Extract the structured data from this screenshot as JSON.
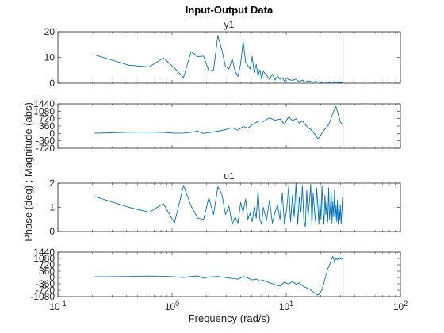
{
  "chart_data": {
    "type": "line",
    "title": "Input-Output Data",
    "xlabel": "Frequency  (rad/s)",
    "ylabel": "Phase (deg) ; Magnitude (abs)",
    "xscale": "log",
    "xlim": [
      0.1,
      100
    ],
    "x_tick_labels": [
      "10^-1",
      "10^0",
      "10^1",
      "10^2"
    ],
    "nyquist_line_x": 31.4,
    "line_color": "#0072BD",
    "vline_color": "#000000",
    "grid": false,
    "legend": "none",
    "panels": [
      {
        "name": "y1-magnitude",
        "subtitle": "y1",
        "ylim": [
          0,
          20
        ],
        "yticks": [
          0,
          10,
          20
        ],
        "series": [
          {
            "x": [
              0.21,
              0.42,
              0.63,
              0.84,
              1.05,
              1.26,
              1.47,
              1.68,
              1.89,
              2.1,
              2.31,
              2.52,
              2.73,
              2.94,
              3.15,
              3.36,
              3.57,
              3.78,
              3.99,
              4.2,
              4.41,
              4.62,
              4.83,
              5.04,
              5.25,
              5.46,
              5.67,
              5.88,
              6.09,
              6.3,
              6.72,
              7.14,
              7.56,
              7.98,
              8.4,
              8.82,
              9.24,
              9.66,
              10.08,
              10.5,
              11.34,
              12.18,
              13.02,
              13.86,
              14.7,
              15.54,
              16.38,
              17.22,
              18.06,
              18.9,
              19.74,
              20.58,
              21.42,
              22.26,
              23.1,
              23.94,
              24.78,
              25.62,
              26.46,
              27.3,
              28.14,
              28.98,
              29.82,
              30.66,
              31.4
            ],
            "y": [
              11,
              7,
              6.3,
              9.8,
              5.9,
              2.2,
              12.3,
              10.3,
              10.5,
              4.7,
              5.2,
              18.5,
              13,
              6.5,
              5.5,
              9.5,
              4.6,
              2.6,
              7.5,
              16.3,
              8.2,
              6.8,
              5.5,
              10.3,
              4.2,
              7.3,
              2.8,
              5.2,
              1.6,
              4.6,
              3.2,
              1.5,
              3.5,
              1.2,
              2.9,
              1.5,
              2.2,
              0.8,
              2.0,
              1.4,
              1.1,
              1.6,
              0.6,
              1.2,
              0.4,
              0.9,
              0.7,
              0.3,
              0.8,
              0.4,
              0.6,
              0.2,
              0.5,
              0.3,
              0.4,
              0.2,
              0.5,
              0.3,
              0.2,
              0.4,
              0.2,
              0.3,
              0.3,
              0.2,
              0.3
            ]
          }
        ]
      },
      {
        "name": "y1-phase",
        "subtitle": "",
        "ylim": [
          -720,
          1440
        ],
        "yticks": [
          -720,
          -360,
          0,
          360,
          720,
          1080,
          1440
        ],
        "series": [
          {
            "x": [
              0.21,
              0.42,
              0.63,
              0.84,
              1.05,
              1.26,
              1.47,
              1.68,
              1.89,
              2.1,
              2.52,
              2.94,
              3.36,
              3.78,
              4.2,
              4.62,
              5.04,
              5.46,
              5.88,
              6.3,
              7.14,
              7.98,
              8.82,
              9.66,
              10.5,
              11.34,
              12.18,
              13.02,
              13.86,
              14.7,
              15.54,
              16.38,
              17.22,
              18.06,
              18.9,
              19.74,
              20.58,
              21.42,
              22.26,
              23.1,
              23.94,
              24.78,
              25.62,
              26.46,
              27.3,
              28.14,
              28.98,
              29.82,
              30.66,
              31.4
            ],
            "y": [
              10,
              60,
              70,
              50,
              10,
              15,
              60,
              110,
              0,
              40,
              110,
              190,
              280,
              150,
              340,
              260,
              420,
              540,
              620,
              580,
              760,
              640,
              700,
              460,
              820,
              620,
              720,
              500,
              610,
              420,
              280,
              200,
              60,
              -80,
              -250,
              -160,
              20,
              160,
              260,
              360,
              520,
              760,
              980,
              1180,
              1300,
              1050,
              820,
              560,
              480,
              420
            ]
          }
        ]
      },
      {
        "name": "u1-magnitude",
        "subtitle": "u1",
        "ylim": [
          0,
          2
        ],
        "yticks": [
          0,
          1,
          2
        ],
        "series": [
          {
            "x": [
              0.21,
              0.42,
              0.63,
              0.84,
              1.05,
              1.26,
              1.47,
              1.68,
              1.89,
              2.1,
              2.31,
              2.52,
              2.73,
              2.94,
              3.15,
              3.36,
              3.57,
              3.78,
              3.99,
              4.2,
              4.41,
              4.62,
              4.83,
              5.04,
              5.25,
              5.46,
              5.67,
              5.88,
              6.09,
              6.3,
              6.72,
              7.14,
              7.56,
              7.98,
              8.4,
              8.82,
              9.24,
              9.66,
              10.08,
              10.5,
              10.92,
              11.34,
              11.76,
              12.18,
              12.6,
              13.02,
              13.44,
              13.86,
              14.28,
              14.7,
              15.12,
              15.54,
              15.96,
              16.38,
              16.8,
              17.22,
              17.64,
              18.06,
              18.48,
              18.9,
              19.32,
              19.74,
              20.16,
              20.58,
              21.0,
              21.42,
              21.84,
              22.26,
              22.68,
              23.1,
              23.52,
              23.94,
              24.36,
              24.78,
              25.2,
              25.62,
              26.04,
              26.46,
              26.88,
              27.3,
              27.72,
              28.14,
              28.56,
              28.98,
              29.4,
              29.82,
              30.24,
              30.66,
              31.08,
              31.4
            ],
            "y": [
              1.45,
              1.0,
              0.8,
              1.15,
              0.35,
              1.9,
              1.05,
              0.55,
              0.5,
              1.4,
              0.7,
              1.85,
              1.55,
              0.7,
              1.05,
              0.3,
              0.6,
              0.35,
              1.2,
              0.8,
              1.35,
              0.5,
              0.75,
              0.4,
              1.0,
              0.55,
              1.7,
              0.5,
              0.3,
              1.0,
              0.45,
              1.3,
              0.35,
              0.8,
              1.1,
              0.5,
              1.6,
              0.3,
              0.9,
              1.85,
              0.4,
              1.5,
              0.6,
              2.0,
              0.3,
              1.4,
              0.8,
              1.9,
              0.45,
              0.2,
              1.7,
              0.6,
              1.2,
              1.95,
              0.2,
              1.6,
              0.9,
              0.4,
              1.8,
              1.1,
              0.3,
              1.3,
              0.5,
              1.9,
              0.9,
              0.3,
              1.5,
              0.7,
              1.2,
              0.4,
              1.8,
              0.5,
              1.0,
              1.6,
              0.35,
              1.25,
              0.6,
              1.7,
              0.5,
              1.1,
              0.4,
              1.3,
              0.3,
              0.9,
              0.5,
              1.1,
              0.3,
              0.8,
              1.4,
              0.6
            ]
          }
        ]
      },
      {
        "name": "u1-phase",
        "subtitle": "",
        "ylim": [
          -1080,
          1440
        ],
        "yticks": [
          -1080,
          -720,
          -360,
          0,
          360,
          720,
          1080,
          1440
        ],
        "series": [
          {
            "x": [
              0.21,
              0.42,
              0.63,
              0.84,
              1.05,
              1.26,
              1.47,
              1.68,
              1.89,
              2.1,
              2.52,
              2.94,
              3.36,
              3.78,
              4.2,
              4.62,
              5.04,
              5.46,
              5.88,
              6.3,
              7.14,
              7.98,
              8.82,
              9.66,
              10.5,
              11.34,
              12.18,
              13.02,
              13.86,
              14.7,
              15.54,
              16.38,
              17.22,
              18.06,
              18.9,
              19.74,
              20.58,
              21.42,
              22.26,
              23.1,
              23.94,
              24.78,
              25.62,
              26.46,
              27.3,
              28.14,
              28.98,
              29.82,
              30.66,
              31.4
            ],
            "y": [
              40,
              60,
              80,
              70,
              40,
              0,
              60,
              90,
              -40,
              30,
              60,
              0,
              -60,
              -100,
              60,
              -30,
              -140,
              -90,
              -200,
              -160,
              -300,
              -400,
              -500,
              -260,
              -380,
              -220,
              -380,
              -300,
              -460,
              -560,
              -620,
              -700,
              -820,
              -900,
              -1000,
              -880,
              -700,
              -300,
              100,
              500,
              700,
              1000,
              1200,
              900,
              1100,
              1000,
              1150,
              1050,
              1100,
              1000
            ]
          }
        ]
      }
    ]
  }
}
